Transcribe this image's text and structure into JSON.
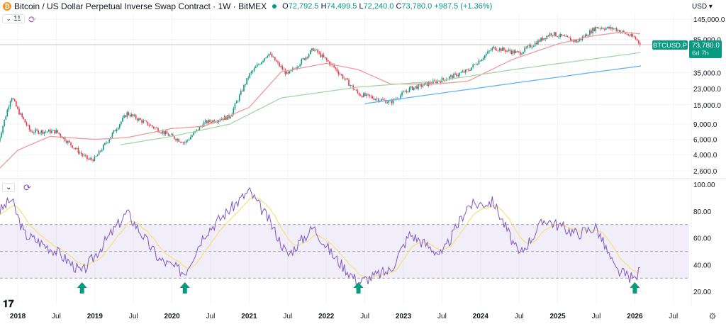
{
  "header": {
    "title": "Bitcoin / US Dollar Perpetual Inverse Swap Contract · 1W · BitMEX",
    "open_label": "O",
    "open": "72,792.5",
    "high_label": "H",
    "high": "74,499.5",
    "low_label": "L",
    "low": "72,240.0",
    "close_label": "C",
    "close": "73,780.0",
    "change": "+987.5 (+1.36%)",
    "coin_icon": "bitcoin-icon"
  },
  "indicator_toggle": {
    "count": "11"
  },
  "currency": "USD",
  "price_label": {
    "symbol": "BTCUSD.P",
    "price": "73,780.0",
    "countdown": "6d 7h"
  },
  "logo": "TV",
  "colors": {
    "up": "#089981",
    "down": "#f23645",
    "ma_red": "#ef9a9a",
    "ma_green": "#a5d6a7",
    "ma_blue": "#64b5f6",
    "rsi": "#7e57c2",
    "rsi_signal": "#f5e27a",
    "arrow": "#089981"
  },
  "chart_data": [
    {
      "type": "candlestick",
      "scale": "log",
      "interval": "1W",
      "yticks": [
        "145,000.0",
        "85,000.0",
        "35,000.0",
        "23,000.0",
        "15,000.0",
        "9,000.0",
        "6,000.0",
        "4,000.0",
        "2,600.0"
      ],
      "ytick_values": [
        145000,
        85000,
        35000,
        23000,
        15000,
        9000,
        6000,
        4000,
        2600
      ],
      "xticks": [
        "2018",
        "Jul",
        "2019",
        "Jul",
        "2020",
        "Jul",
        "2021",
        "Jul",
        "2022",
        "Jul",
        "2023",
        "Jul",
        "2024",
        "Jul",
        "2025",
        "Jul",
        "2026",
        "Jul"
      ],
      "xtick_dates": [
        "2018-01",
        "2018-07",
        "2019-01",
        "2019-07",
        "2020-01",
        "2020-07",
        "2021-01",
        "2021-07",
        "2022-01",
        "2022-07",
        "2023-01",
        "2023-07",
        "2024-01",
        "2024-07",
        "2025-01",
        "2025-07",
        "2026-01",
        "2026-07"
      ],
      "close_keypoints": [
        [
          "2017-10",
          5700
        ],
        [
          "2017-12",
          19000
        ],
        [
          "2018-01",
          13000
        ],
        [
          "2018-03",
          7400
        ],
        [
          "2018-07",
          7400
        ],
        [
          "2018-11",
          4000
        ],
        [
          "2018-12",
          3500
        ],
        [
          "2019-01",
          3600
        ],
        [
          "2019-06",
          12000
        ],
        [
          "2019-12",
          7000
        ],
        [
          "2020-03",
          5500
        ],
        [
          "2020-06",
          9300
        ],
        [
          "2020-10",
          11000
        ],
        [
          "2021-01",
          33000
        ],
        [
          "2021-04",
          59000
        ],
        [
          "2021-07",
          33000
        ],
        [
          "2021-11",
          66000
        ],
        [
          "2022-02",
          42000
        ],
        [
          "2022-06",
          20000
        ],
        [
          "2022-11",
          16000
        ],
        [
          "2023-02",
          23000
        ],
        [
          "2023-07",
          29000
        ],
        [
          "2023-11",
          37000
        ],
        [
          "2024-03",
          68000
        ],
        [
          "2024-07",
          59000
        ],
        [
          "2024-11",
          90000
        ],
        [
          "2024-12",
          100000
        ],
        [
          "2025-04",
          80000
        ],
        [
          "2025-07",
          117000
        ],
        [
          "2025-10",
          112000
        ],
        [
          "2026-01",
          88000
        ],
        [
          "2026-02",
          73780
        ]
      ],
      "ma_series": [
        {
          "color": "ma_red",
          "points": [
            [
              "2017-10",
              2700
            ],
            [
              "2018-01",
              4500
            ],
            [
              "2018-06",
              6500
            ],
            [
              "2019-01",
              6000
            ],
            [
              "2019-06",
              6300
            ],
            [
              "2020-01",
              8000
            ],
            [
              "2020-06",
              8500
            ],
            [
              "2021-01",
              14000
            ],
            [
              "2021-06",
              36000
            ],
            [
              "2022-01",
              45000
            ],
            [
              "2022-06",
              38000
            ],
            [
              "2022-11",
              26000
            ],
            [
              "2023-06",
              26000
            ],
            [
              "2023-11",
              28000
            ],
            [
              "2024-06",
              50000
            ],
            [
              "2025-01",
              75000
            ],
            [
              "2025-06",
              92000
            ],
            [
              "2025-11",
              103000
            ],
            [
              "2026-02",
              98000
            ]
          ]
        },
        {
          "color": "ma_green",
          "points": [
            [
              "2019-05",
              5200
            ],
            [
              "2020-01",
              6500
            ],
            [
              "2020-10",
              9000
            ],
            [
              "2021-06",
              18000
            ],
            [
              "2022-06",
              24000
            ],
            [
              "2023-06",
              28000
            ],
            [
              "2024-06",
              38000
            ],
            [
              "2025-06",
              50000
            ],
            [
              "2026-02",
              60000
            ]
          ]
        },
        {
          "color": "ma_blue",
          "points": [
            [
              "2022-07",
              15500
            ],
            [
              "2023-06",
              20000
            ],
            [
              "2024-06",
              26500
            ],
            [
              "2025-06",
              35000
            ],
            [
              "2026-02",
              42000
            ]
          ]
        }
      ],
      "last_price": 73780
    },
    {
      "type": "line",
      "name": "RSI",
      "ylim": [
        20,
        100
      ],
      "yticks": [
        "100.00",
        "80.00",
        "60.00",
        "40.00",
        "20.00"
      ],
      "ytick_values": [
        100,
        80,
        60,
        40,
        20
      ],
      "band": [
        30,
        70
      ],
      "midline": 50,
      "rsi_keypoints": [
        [
          "2017-10",
          79
        ],
        [
          "2017-12",
          89
        ],
        [
          "2018-02",
          63
        ],
        [
          "2018-07",
          50
        ],
        [
          "2018-11",
          34
        ],
        [
          "2019-06",
          79
        ],
        [
          "2019-11",
          44
        ],
        [
          "2020-03",
          34
        ],
        [
          "2020-06",
          63
        ],
        [
          "2021-01",
          95
        ],
        [
          "2021-04",
          74
        ],
        [
          "2021-07",
          47
        ],
        [
          "2021-11",
          68
        ],
        [
          "2022-02",
          47
        ],
        [
          "2022-06",
          27
        ],
        [
          "2022-11",
          36
        ],
        [
          "2023-02",
          63
        ],
        [
          "2023-07",
          47
        ],
        [
          "2023-11",
          84
        ],
        [
          "2024-03",
          87
        ],
        [
          "2024-07",
          47
        ],
        [
          "2024-11",
          74
        ],
        [
          "2025-04",
          63
        ],
        [
          "2025-07",
          68
        ],
        [
          "2025-10",
          36
        ],
        [
          "2026-01",
          29
        ],
        [
          "2026-02",
          38
        ]
      ],
      "buy_signal_dates": [
        "2018-11",
        "2020-03",
        "2022-06",
        "2026-01"
      ]
    }
  ]
}
